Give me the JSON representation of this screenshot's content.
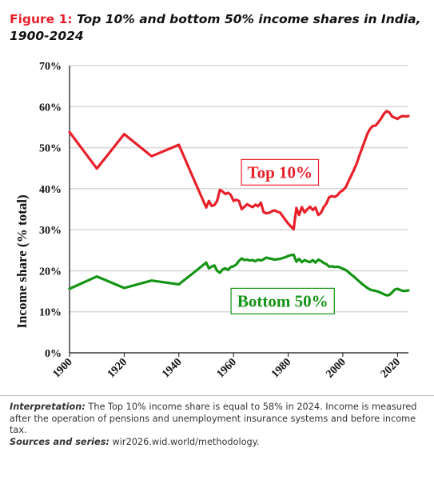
{
  "figure": {
    "label": "Figure 1:",
    "title": "Top 10% and bottom 50% income shares in India, 1900-2024"
  },
  "chart_data": {
    "type": "line",
    "ylabel": "Income share (% total)",
    "xlim": [
      1900,
      2024
    ],
    "ylim": [
      0,
      70
    ],
    "x_ticks": [
      1900,
      1920,
      1940,
      1960,
      1980,
      2000,
      2020
    ],
    "y_ticks": [
      0,
      10,
      20,
      30,
      40,
      50,
      60,
      70
    ],
    "y_tick_labels": [
      "0%",
      "10%",
      "20%",
      "30%",
      "40%",
      "50%",
      "60%",
      "70%"
    ],
    "grid": "horizontal",
    "series": [
      {
        "name": "Top 10%",
        "color": "#e8202a",
        "points": [
          [
            1900,
            53.8
          ],
          [
            1910,
            44.9
          ],
          [
            1920,
            53.3
          ],
          [
            1930,
            47.9
          ],
          [
            1940,
            50.7
          ],
          [
            1945,
            43.0
          ],
          [
            1950,
            35.4
          ],
          [
            1951,
            37.0
          ],
          [
            1952,
            35.8
          ],
          [
            1953,
            36.0
          ],
          [
            1954,
            37.0
          ],
          [
            1955,
            39.7
          ],
          [
            1956,
            39.3
          ],
          [
            1957,
            38.7
          ],
          [
            1958,
            39.0
          ],
          [
            1959,
            38.5
          ],
          [
            1960,
            37.0
          ],
          [
            1961,
            37.3
          ],
          [
            1962,
            37.0
          ],
          [
            1963,
            35.0
          ],
          [
            1964,
            35.6
          ],
          [
            1965,
            36.2
          ],
          [
            1966,
            35.8
          ],
          [
            1967,
            35.5
          ],
          [
            1968,
            36.1
          ],
          [
            1969,
            35.7
          ],
          [
            1970,
            36.6
          ],
          [
            1971,
            34.3
          ],
          [
            1972,
            34.0
          ],
          [
            1973,
            34.1
          ],
          [
            1974,
            34.5
          ],
          [
            1975,
            34.7
          ],
          [
            1976,
            34.4
          ],
          [
            1977,
            34.2
          ],
          [
            1978,
            33.3
          ],
          [
            1979,
            32.4
          ],
          [
            1980,
            31.5
          ],
          [
            1981,
            30.8
          ],
          [
            1982,
            30.1
          ],
          [
            1983,
            35.3
          ],
          [
            1984,
            33.6
          ],
          [
            1985,
            35.5
          ],
          [
            1986,
            34.2
          ],
          [
            1987,
            35.0
          ],
          [
            1988,
            35.6
          ],
          [
            1989,
            34.8
          ],
          [
            1990,
            35.4
          ],
          [
            1991,
            33.6
          ],
          [
            1992,
            34.1
          ],
          [
            1993,
            35.5
          ],
          [
            1994,
            36.4
          ],
          [
            1995,
            37.9
          ],
          [
            1996,
            38.2
          ],
          [
            1997,
            38.0
          ],
          [
            1998,
            38.4
          ],
          [
            1999,
            39.2
          ],
          [
            2000,
            39.6
          ],
          [
            2001,
            40.3
          ],
          [
            2002,
            41.7
          ],
          [
            2003,
            43.1
          ],
          [
            2004,
            44.5
          ],
          [
            2005,
            46.0
          ],
          [
            2006,
            48.0
          ],
          [
            2007,
            49.8
          ],
          [
            2008,
            51.6
          ],
          [
            2009,
            53.4
          ],
          [
            2010,
            54.6
          ],
          [
            2011,
            55.3
          ],
          [
            2012,
            55.4
          ],
          [
            2013,
            56.2
          ],
          [
            2014,
            57.1
          ],
          [
            2015,
            58.2
          ],
          [
            2016,
            58.9
          ],
          [
            2017,
            58.6
          ],
          [
            2018,
            57.6
          ],
          [
            2019,
            57.3
          ],
          [
            2020,
            57.0
          ],
          [
            2021,
            57.5
          ],
          [
            2022,
            57.7
          ],
          [
            2023,
            57.6
          ],
          [
            2024,
            57.7
          ]
        ]
      },
      {
        "name": "Bottom 50%",
        "color": "#149414",
        "points": [
          [
            1900,
            15.6
          ],
          [
            1910,
            18.6
          ],
          [
            1920,
            15.8
          ],
          [
            1930,
            17.6
          ],
          [
            1940,
            16.7
          ],
          [
            1945,
            19.3
          ],
          [
            1950,
            22.0
          ],
          [
            1951,
            20.6
          ],
          [
            1952,
            21.0
          ],
          [
            1953,
            21.3
          ],
          [
            1954,
            20.0
          ],
          [
            1955,
            19.5
          ],
          [
            1956,
            20.3
          ],
          [
            1957,
            20.6
          ],
          [
            1958,
            20.2
          ],
          [
            1959,
            20.9
          ],
          [
            1960,
            21.1
          ],
          [
            1961,
            21.5
          ],
          [
            1962,
            22.4
          ],
          [
            1963,
            23.0
          ],
          [
            1964,
            22.6
          ],
          [
            1965,
            22.7
          ],
          [
            1966,
            22.5
          ],
          [
            1967,
            22.6
          ],
          [
            1968,
            22.3
          ],
          [
            1969,
            22.7
          ],
          [
            1970,
            22.5
          ],
          [
            1971,
            22.8
          ],
          [
            1972,
            23.2
          ],
          [
            1973,
            23.0
          ],
          [
            1974,
            22.9
          ],
          [
            1975,
            22.7
          ],
          [
            1976,
            22.8
          ],
          [
            1977,
            22.9
          ],
          [
            1978,
            23.1
          ],
          [
            1979,
            23.3
          ],
          [
            1980,
            23.6
          ],
          [
            1981,
            23.8
          ],
          [
            1982,
            23.9
          ],
          [
            1983,
            22.2
          ],
          [
            1984,
            22.9
          ],
          [
            1985,
            22.1
          ],
          [
            1986,
            22.6
          ],
          [
            1987,
            22.3
          ],
          [
            1988,
            22.1
          ],
          [
            1989,
            22.6
          ],
          [
            1990,
            22.0
          ],
          [
            1991,
            22.7
          ],
          [
            1992,
            22.4
          ],
          [
            1993,
            21.9
          ],
          [
            1994,
            21.6
          ],
          [
            1995,
            21.0
          ],
          [
            1996,
            21.1
          ],
          [
            1997,
            20.9
          ],
          [
            1998,
            21.0
          ],
          [
            1999,
            20.8
          ],
          [
            2000,
            20.5
          ],
          [
            2001,
            20.2
          ],
          [
            2002,
            19.7
          ],
          [
            2003,
            19.1
          ],
          [
            2004,
            18.6
          ],
          [
            2005,
            18.0
          ],
          [
            2006,
            17.4
          ],
          [
            2007,
            16.8
          ],
          [
            2008,
            16.3
          ],
          [
            2009,
            15.8
          ],
          [
            2010,
            15.4
          ],
          [
            2011,
            15.2
          ],
          [
            2012,
            15.1
          ],
          [
            2013,
            14.9
          ],
          [
            2014,
            14.6
          ],
          [
            2015,
            14.3
          ],
          [
            2016,
            14.0
          ],
          [
            2017,
            14.1
          ],
          [
            2018,
            14.7
          ],
          [
            2019,
            15.4
          ],
          [
            2020,
            15.6
          ],
          [
            2021,
            15.3
          ],
          [
            2022,
            15.1
          ],
          [
            2023,
            15.1
          ],
          [
            2024,
            15.2
          ]
        ]
      }
    ],
    "annotations": [
      {
        "text": "Top 10%",
        "x": 1977,
        "y": 44.0,
        "color": "#e8202a"
      },
      {
        "text": "Bottom 50%",
        "x": 1978,
        "y": 12.6,
        "color": "#149414"
      }
    ]
  },
  "notes": {
    "interpretation_label": "Interpretation:",
    "interpretation_text": " The Top 10% income share is equal to 58% in 2024. Income is measured after the operation of pensions and unemployment insurance systems and before income tax.",
    "sources_label": "Sources and series:",
    "sources_text": " wir2026.wid.world/methodology."
  }
}
